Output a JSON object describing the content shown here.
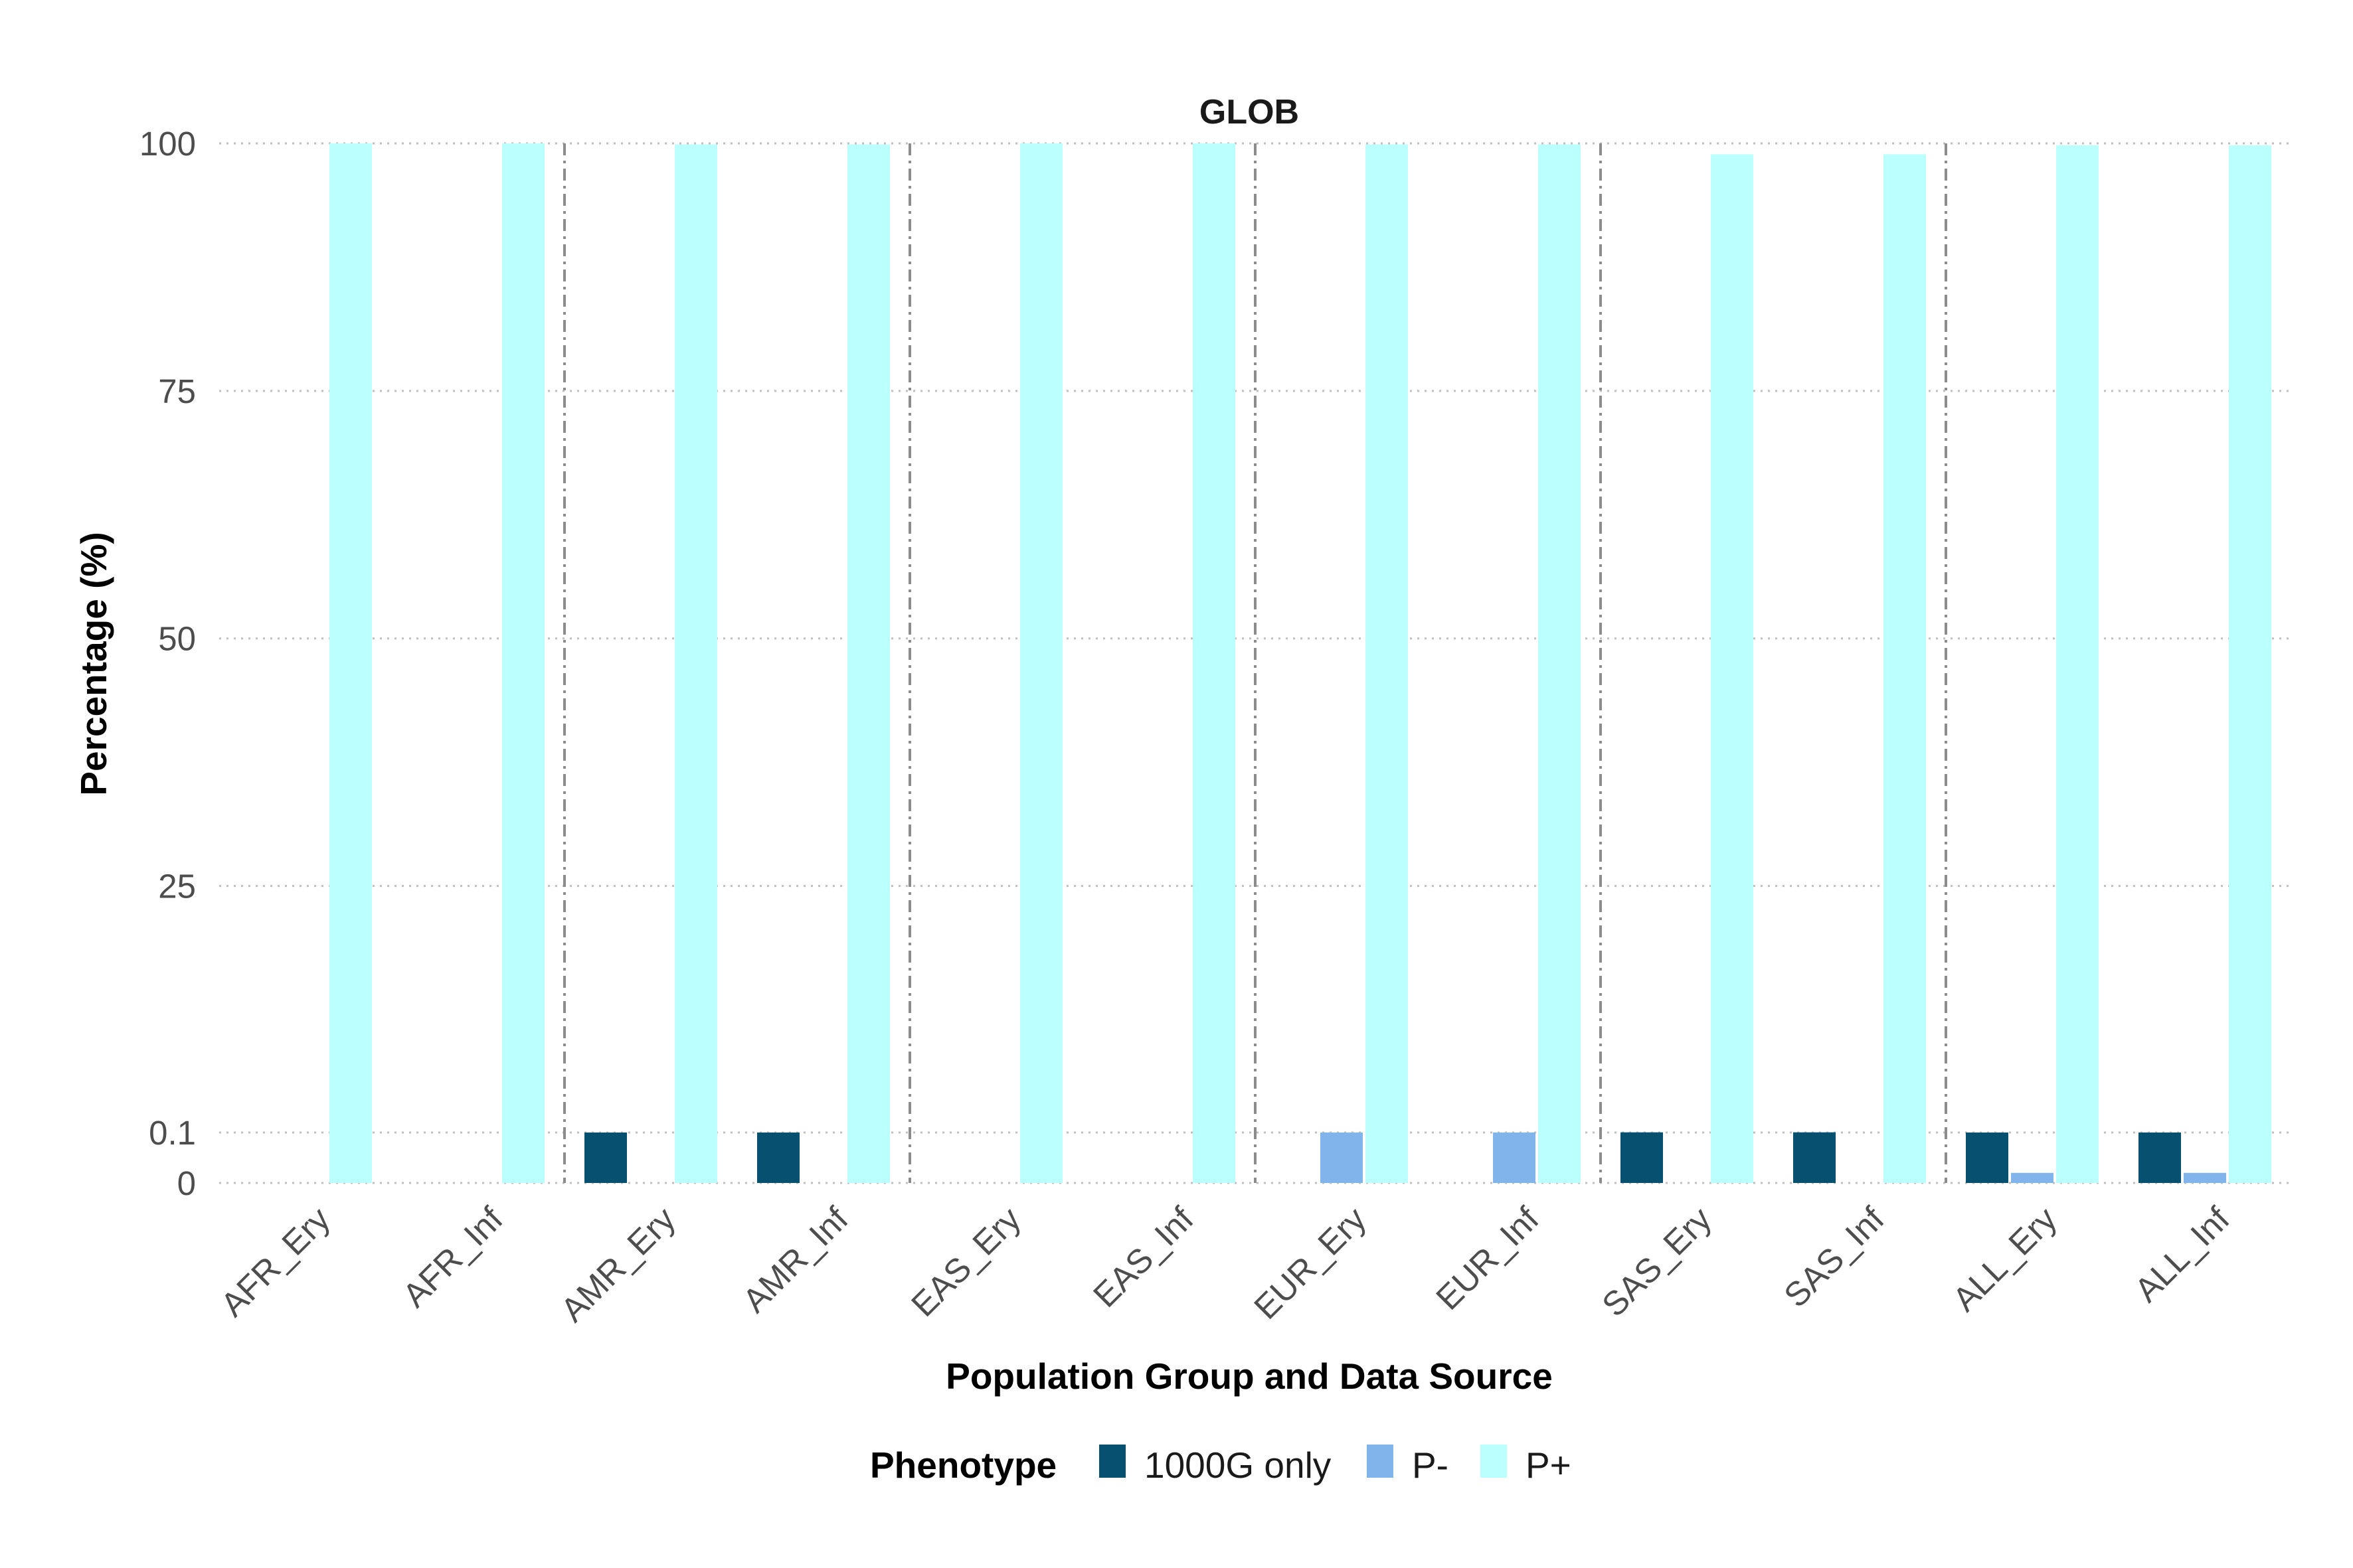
{
  "chart_data": {
    "type": "bar",
    "title": "GLOB",
    "xlabel": "Population Group and Data Source",
    "ylabel": "Percentage (%)",
    "y_ticks": [
      "0",
      "0.1",
      "25",
      "50",
      "75",
      "100"
    ],
    "y_scale": "piecewise: 0 to 0.1 expanded, 0.1 to 100 linear",
    "grid": "horizontal dotted",
    "group_separators": "dot-dash vertical lines between population groups",
    "categories": [
      "AFR_Ery",
      "AFR_Inf",
      "AMR_Ery",
      "AMR_Inf",
      "EAS_Ery",
      "EAS_Inf",
      "EUR_Ery",
      "EUR_Inf",
      "SAS_Ery",
      "SAS_Inf",
      "ALL_Ery",
      "ALL_Inf"
    ],
    "series": [
      {
        "name": "1000G only",
        "color": "#08506f",
        "values": [
          0,
          0,
          0.1,
          0.1,
          0,
          0,
          0,
          0,
          0.12,
          0.12,
          0.1,
          0.1
        ]
      },
      {
        "name": "P-",
        "color": "#80b4ea",
        "values": [
          0,
          0,
          0,
          0,
          0,
          0,
          0.1,
          0.1,
          0,
          0,
          0.02,
          0.02
        ]
      },
      {
        "name": "P+",
        "color": "#bbffff",
        "values": [
          100,
          100,
          99.9,
          99.9,
          100,
          100,
          99.9,
          99.9,
          98.9,
          98.9,
          99.8,
          99.8
        ]
      }
    ],
    "legend": {
      "title": "Phenotype",
      "position": "bottom"
    }
  }
}
